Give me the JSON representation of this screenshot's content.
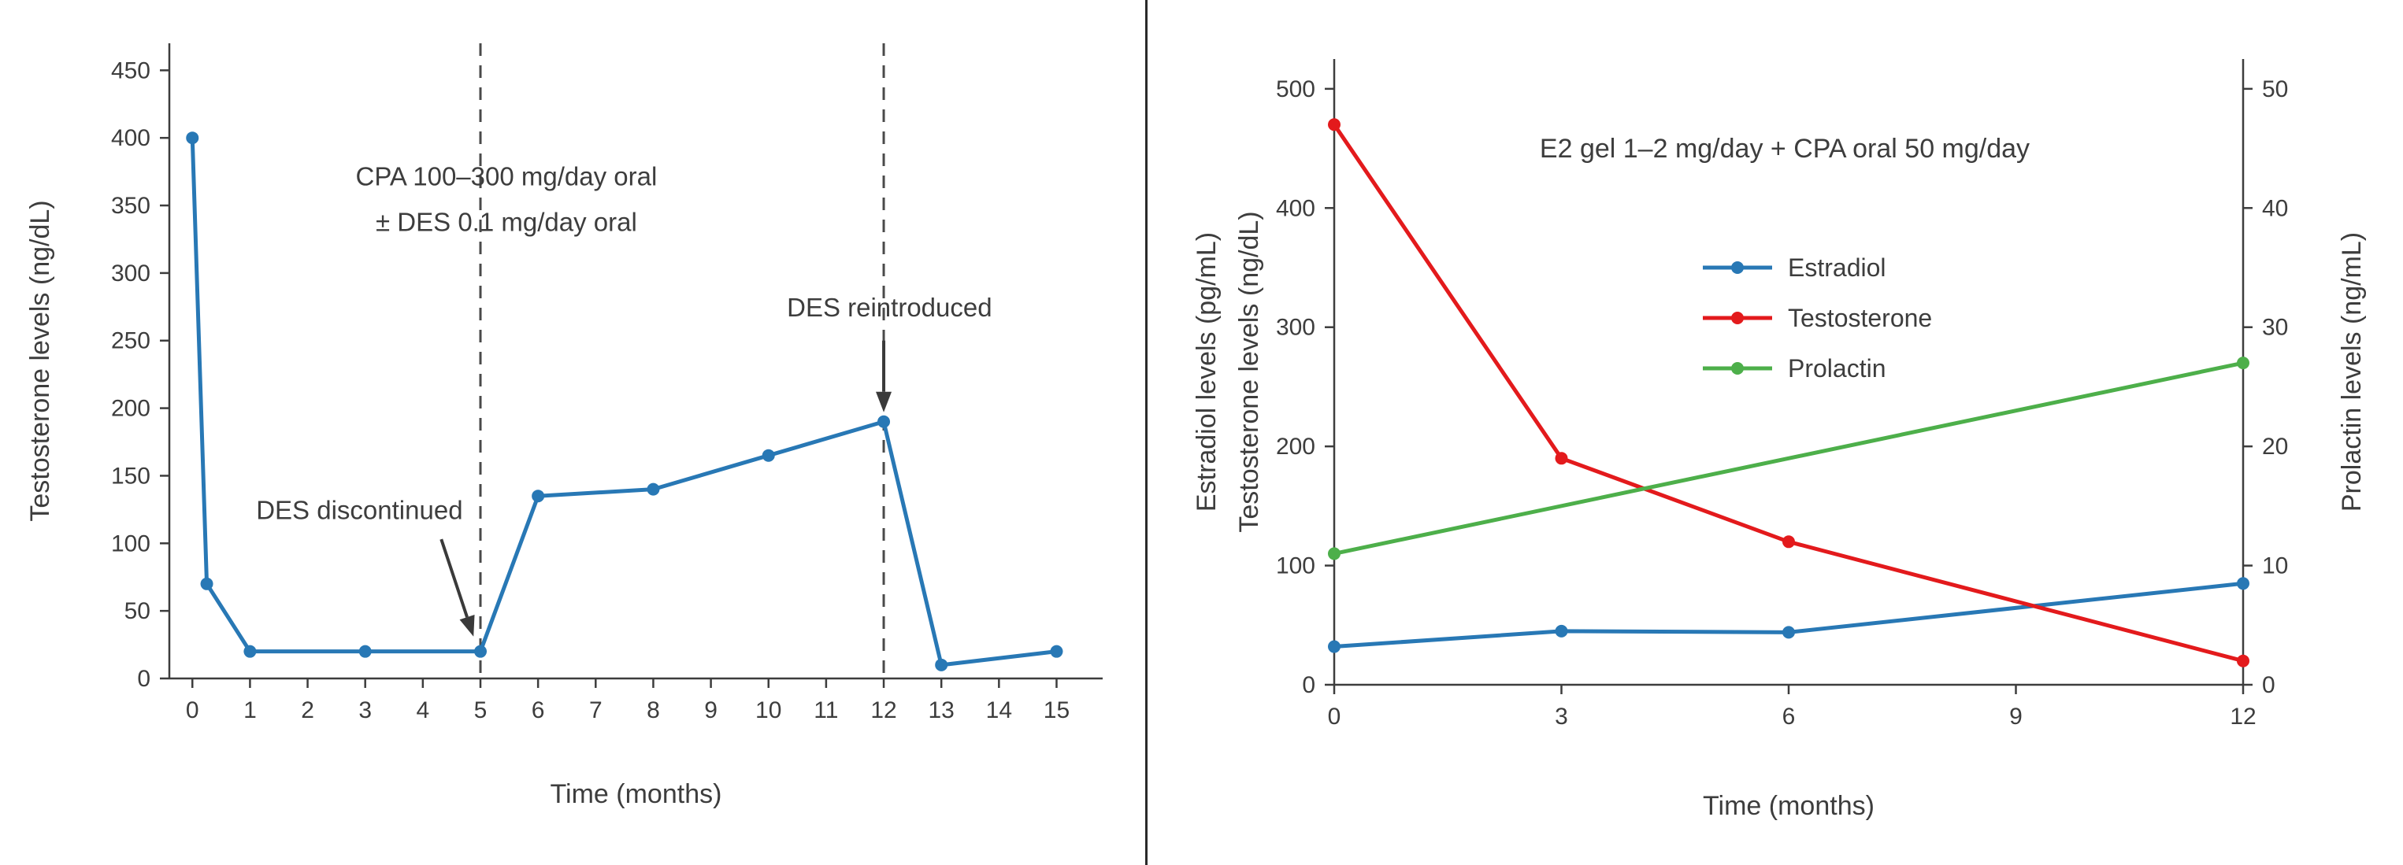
{
  "page": {
    "background": "#ffffff",
    "divider_color": "#2a2a2a",
    "text_color": "#3d3d3d"
  },
  "chart_data": [
    {
      "type": "line",
      "title": "",
      "xlabel": "Time (months)",
      "ylabel": "Testosterone levels (ng/dL)",
      "xlim": [
        -0.4,
        15.8
      ],
      "ylim": [
        0,
        470
      ],
      "xticks": [
        0,
        1,
        2,
        3,
        4,
        5,
        6,
        7,
        8,
        9,
        10,
        11,
        12,
        13,
        14,
        15
      ],
      "yticks": [
        0,
        50,
        100,
        150,
        200,
        250,
        300,
        350,
        400,
        450
      ],
      "grid": false,
      "legend_position": "none",
      "series": [
        {
          "name": "Testosterone",
          "color": "#2878b5",
          "axis": "left",
          "x": [
            0,
            0.25,
            1,
            3,
            5,
            6,
            8,
            10,
            12,
            13,
            15
          ],
          "y": [
            400,
            70,
            20,
            20,
            20,
            135,
            140,
            165,
            190,
            10,
            20
          ]
        }
      ],
      "vlines": [
        5,
        12
      ],
      "annotations": [
        {
          "lines": [
            "CPA 100–300 mg/day oral",
            "± DES 0.1 mg/day oral"
          ],
          "x": 5.45,
          "y": 365
        },
        {
          "lines": [
            "DES discontinued"
          ],
          "x": 2.9,
          "y": 118,
          "arrow": {
            "x1": 4.32,
            "y1": 103,
            "x2": 4.88,
            "y2": 31
          }
        },
        {
          "lines": [
            "DES reintroduced"
          ],
          "x": 12.1,
          "y": 268,
          "arrow": {
            "x1": 12,
            "y1": 250,
            "x2": 12,
            "y2": 197
          }
        }
      ]
    },
    {
      "type": "line",
      "title": "E2 gel 1–2 mg/day + CPA oral 50 mg/day",
      "xlabel": "Time (months)",
      "ylabel_left": [
        "Estradiol levels (pg/mL)",
        "Testosterone levels (ng/dL)"
      ],
      "ylabel_right": "Prolactin levels (ng/mL)",
      "xlim": [
        0,
        12
      ],
      "ylim_left": [
        0,
        525
      ],
      "ylim_right": [
        0,
        52.5
      ],
      "xticks": [
        0,
        3,
        6,
        9,
        12
      ],
      "yticks_left": [
        0,
        100,
        200,
        300,
        400,
        500
      ],
      "yticks_right": [
        0,
        10,
        20,
        30,
        40,
        50
      ],
      "grid": false,
      "legend_position": "upper-center-right",
      "legend": [
        "Estradiol",
        "Testosterone",
        "Prolactin"
      ],
      "series": [
        {
          "name": "Estradiol",
          "color": "#2878b5",
          "axis": "left",
          "x": [
            0,
            3,
            6,
            12
          ],
          "y": [
            32,
            45,
            44,
            85
          ]
        },
        {
          "name": "Testosterone",
          "color": "#e31a1c",
          "axis": "left",
          "x": [
            0,
            3,
            6,
            12
          ],
          "y": [
            470,
            190,
            120,
            20
          ]
        },
        {
          "name": "Prolactin",
          "color": "#4daf4a",
          "axis": "right",
          "x": [
            0,
            12
          ],
          "y": [
            11,
            27
          ]
        }
      ],
      "annotations": []
    }
  ]
}
